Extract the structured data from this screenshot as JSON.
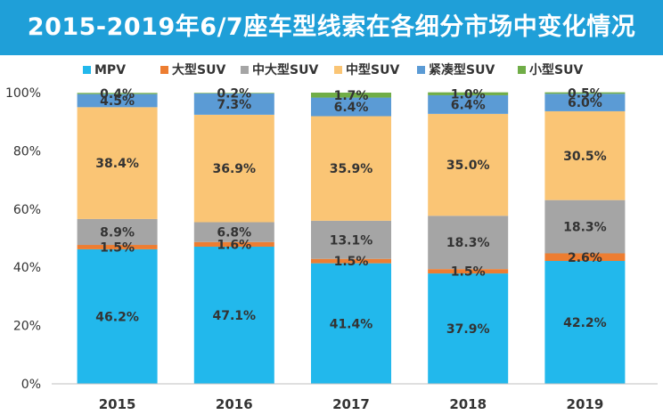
{
  "title": "2015-2019年6/7座车型线索在各细分市场中变化情况",
  "chart_data": {
    "type": "bar",
    "stacked": true,
    "categories": [
      "2015",
      "2016",
      "2017",
      "2018",
      "2019"
    ],
    "ylim": [
      0,
      100
    ],
    "yticks": [
      "0%",
      "20%",
      "40%",
      "60%",
      "80%",
      "100%"
    ],
    "grid": false,
    "legend_position": "top",
    "series": [
      {
        "name": "MPV",
        "color": "#22b8ec",
        "values": [
          46.2,
          47.1,
          41.4,
          37.9,
          42.2
        ],
        "labels": [
          "46.2%",
          "47.1%",
          "41.4%",
          "37.9%",
          "42.2%"
        ]
      },
      {
        "name": "大型SUV",
        "color": "#ed7d31",
        "values": [
          1.5,
          1.6,
          1.5,
          1.5,
          2.6
        ],
        "labels": [
          "1.5%",
          "1.6%",
          "1.5%",
          "1.5%",
          "2.6%"
        ]
      },
      {
        "name": "中大型SUV",
        "color": "#a5a5a5",
        "values": [
          8.9,
          6.8,
          13.1,
          18.3,
          18.3
        ],
        "labels": [
          "8.9%",
          "6.8%",
          "13.1%",
          "18.3%",
          "18.3%"
        ]
      },
      {
        "name": "中型SUV",
        "color": "#fac575",
        "values": [
          38.4,
          36.9,
          35.9,
          35.0,
          30.5
        ],
        "labels": [
          "38.4%",
          "36.9%",
          "35.9%",
          "35.0%",
          "30.5%"
        ]
      },
      {
        "name": "紧凑型SUV",
        "color": "#5b9bd5",
        "values": [
          4.5,
          7.3,
          6.4,
          6.4,
          6.0
        ],
        "labels": [
          "4.5%",
          "7.3%",
          "6.4%",
          "6.4%",
          "6.0%"
        ]
      },
      {
        "name": "小型SUV",
        "color": "#70ad47",
        "values": [
          0.4,
          0.2,
          1.7,
          1.0,
          0.5
        ],
        "labels": [
          "0.4%",
          "0.2%",
          "1.7%",
          "1.0%",
          "0.5%"
        ]
      }
    ]
  }
}
